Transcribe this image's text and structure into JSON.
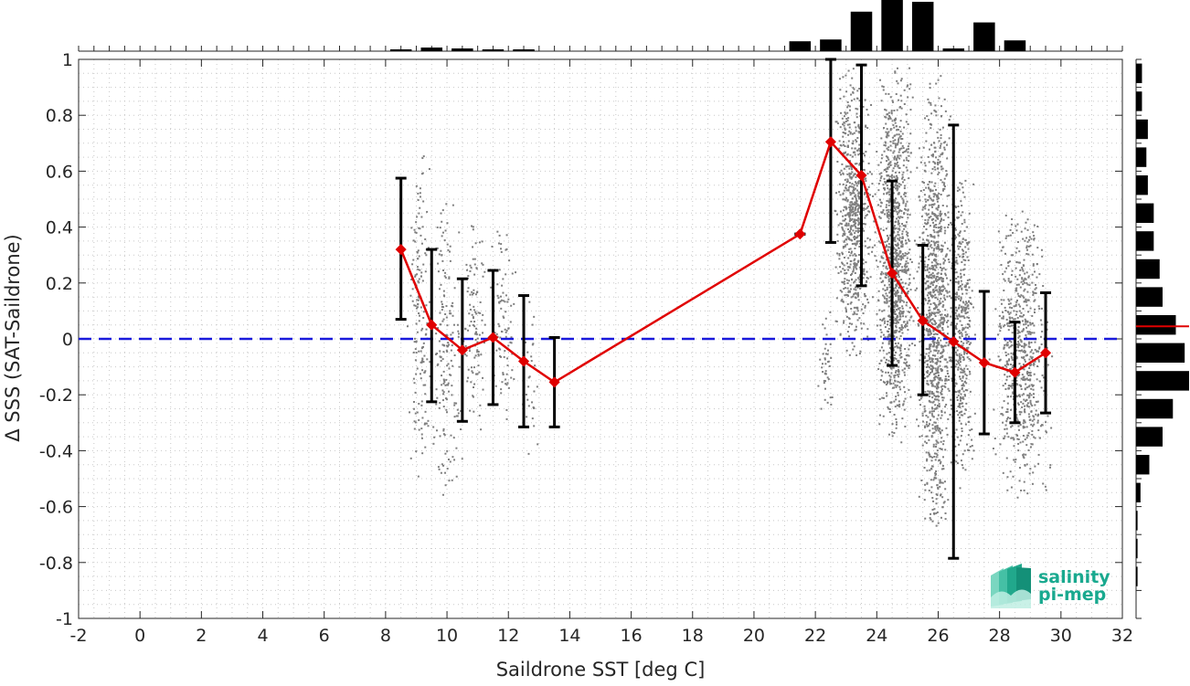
{
  "chart_data": {
    "type": "scatter",
    "xlabel": "Saildrone SST [deg C]",
    "ylabel": "Δ SSS (SAT-Saildrone)",
    "xlim": [
      -2,
      32
    ],
    "ylim": [
      -1,
      1
    ],
    "xticks": [
      -2,
      0,
      2,
      4,
      6,
      8,
      10,
      12,
      14,
      16,
      18,
      20,
      22,
      24,
      26,
      28,
      30,
      32
    ],
    "yticks": [
      -1,
      -0.8,
      -0.6,
      -0.4,
      -0.2,
      0,
      0.2,
      0.4,
      0.6,
      0.8,
      1
    ],
    "ytick_labels": [
      "-1",
      "-0.8",
      "-0.6",
      "-0.4",
      "-0.2",
      "0",
      "0.2",
      "0.4",
      "0.6",
      "0.8",
      "1"
    ],
    "grid": "dotted minor",
    "zero_line": {
      "y": 0,
      "color": "#1a1adb",
      "style": "dashed"
    },
    "mean_series": {
      "color": "#e00000",
      "x": [
        8.5,
        9.5,
        10.5,
        11.5,
        12.5,
        13.5,
        21.5,
        22.5,
        23.5,
        24.5,
        25.5,
        26.5,
        27.5,
        28.5,
        29.5
      ],
      "y": [
        0.32,
        0.05,
        -0.04,
        0.005,
        -0.08,
        -0.155,
        0.375,
        0.705,
        0.585,
        0.235,
        0.065,
        -0.01,
        -0.085,
        -0.12,
        -0.05
      ],
      "err_low": [
        0.07,
        -0.225,
        -0.295,
        -0.235,
        -0.315,
        -0.315,
        0.375,
        0.345,
        0.19,
        -0.095,
        -0.2,
        -0.785,
        -0.34,
        -0.3,
        -0.265
      ],
      "err_high": [
        0.575,
        0.32,
        0.215,
        0.245,
        0.155,
        0.005,
        0.375,
        1.0,
        0.98,
        0.565,
        0.335,
        0.765,
        0.17,
        0.06,
        0.165
      ]
    },
    "scatter_clusters": [
      {
        "x_range": [
          8.6,
          9.6
        ],
        "y_range": [
          -0.5,
          0.72
        ],
        "n": 160
      },
      {
        "x_range": [
          9.3,
          10.6
        ],
        "y_range": [
          -0.65,
          0.6
        ],
        "n": 180
      },
      {
        "x_range": [
          10.4,
          11.4
        ],
        "y_range": [
          -0.35,
          0.45
        ],
        "n": 110
      },
      {
        "x_range": [
          11.2,
          12.4
        ],
        "y_range": [
          -0.35,
          0.4
        ],
        "n": 90
      },
      {
        "x_range": [
          12.4,
          13.0
        ],
        "y_range": [
          -0.45,
          0.17
        ],
        "n": 30
      },
      {
        "x_range": [
          22.0,
          22.7
        ],
        "y_range": [
          -0.35,
          0.15
        ],
        "n": 40
      },
      {
        "x_range": [
          22.5,
          24.0
        ],
        "y_range": [
          -0.1,
          1.0
        ],
        "n": 700
      },
      {
        "x_range": [
          23.8,
          25.4
        ],
        "y_range": [
          -0.4,
          1.0
        ],
        "n": 1100
      },
      {
        "x_range": [
          25.2,
          26.6
        ],
        "y_range": [
          -0.7,
          0.95
        ],
        "n": 1100
      },
      {
        "x_range": [
          26.2,
          27.3
        ],
        "y_range": [
          -0.55,
          0.6
        ],
        "n": 450
      },
      {
        "x_range": [
          27.6,
          29.8
        ],
        "y_range": [
          -0.58,
          0.5
        ],
        "n": 700
      }
    ],
    "top_histogram": {
      "bin_centers": [
        8.5,
        9.5,
        10.5,
        11.5,
        12.5,
        21.5,
        22.5,
        23.5,
        24.5,
        25.5,
        26.5,
        27.5,
        28.5,
        29.5
      ],
      "counts": [
        2,
        4,
        3,
        2,
        2,
        11,
        13,
        44,
        57,
        55,
        3,
        32,
        12,
        0
      ]
    },
    "right_histogram": {
      "bin_centers": [
        0.95,
        0.85,
        0.75,
        0.65,
        0.55,
        0.45,
        0.35,
        0.25,
        0.15,
        0.05,
        -0.05,
        -0.15,
        -0.25,
        -0.35,
        -0.45,
        -0.55,
        -0.65,
        -0.75,
        -0.85
      ],
      "counts": [
        4,
        4,
        8,
        7,
        8,
        12,
        12,
        16,
        18,
        27,
        33,
        36,
        25,
        18,
        9,
        3,
        1,
        1,
        1
      ],
      "mean_line_y": 0.045,
      "mean_line_color": "#e00000"
    },
    "logo": {
      "line1": "salinity",
      "line2": "pi-mep"
    }
  }
}
